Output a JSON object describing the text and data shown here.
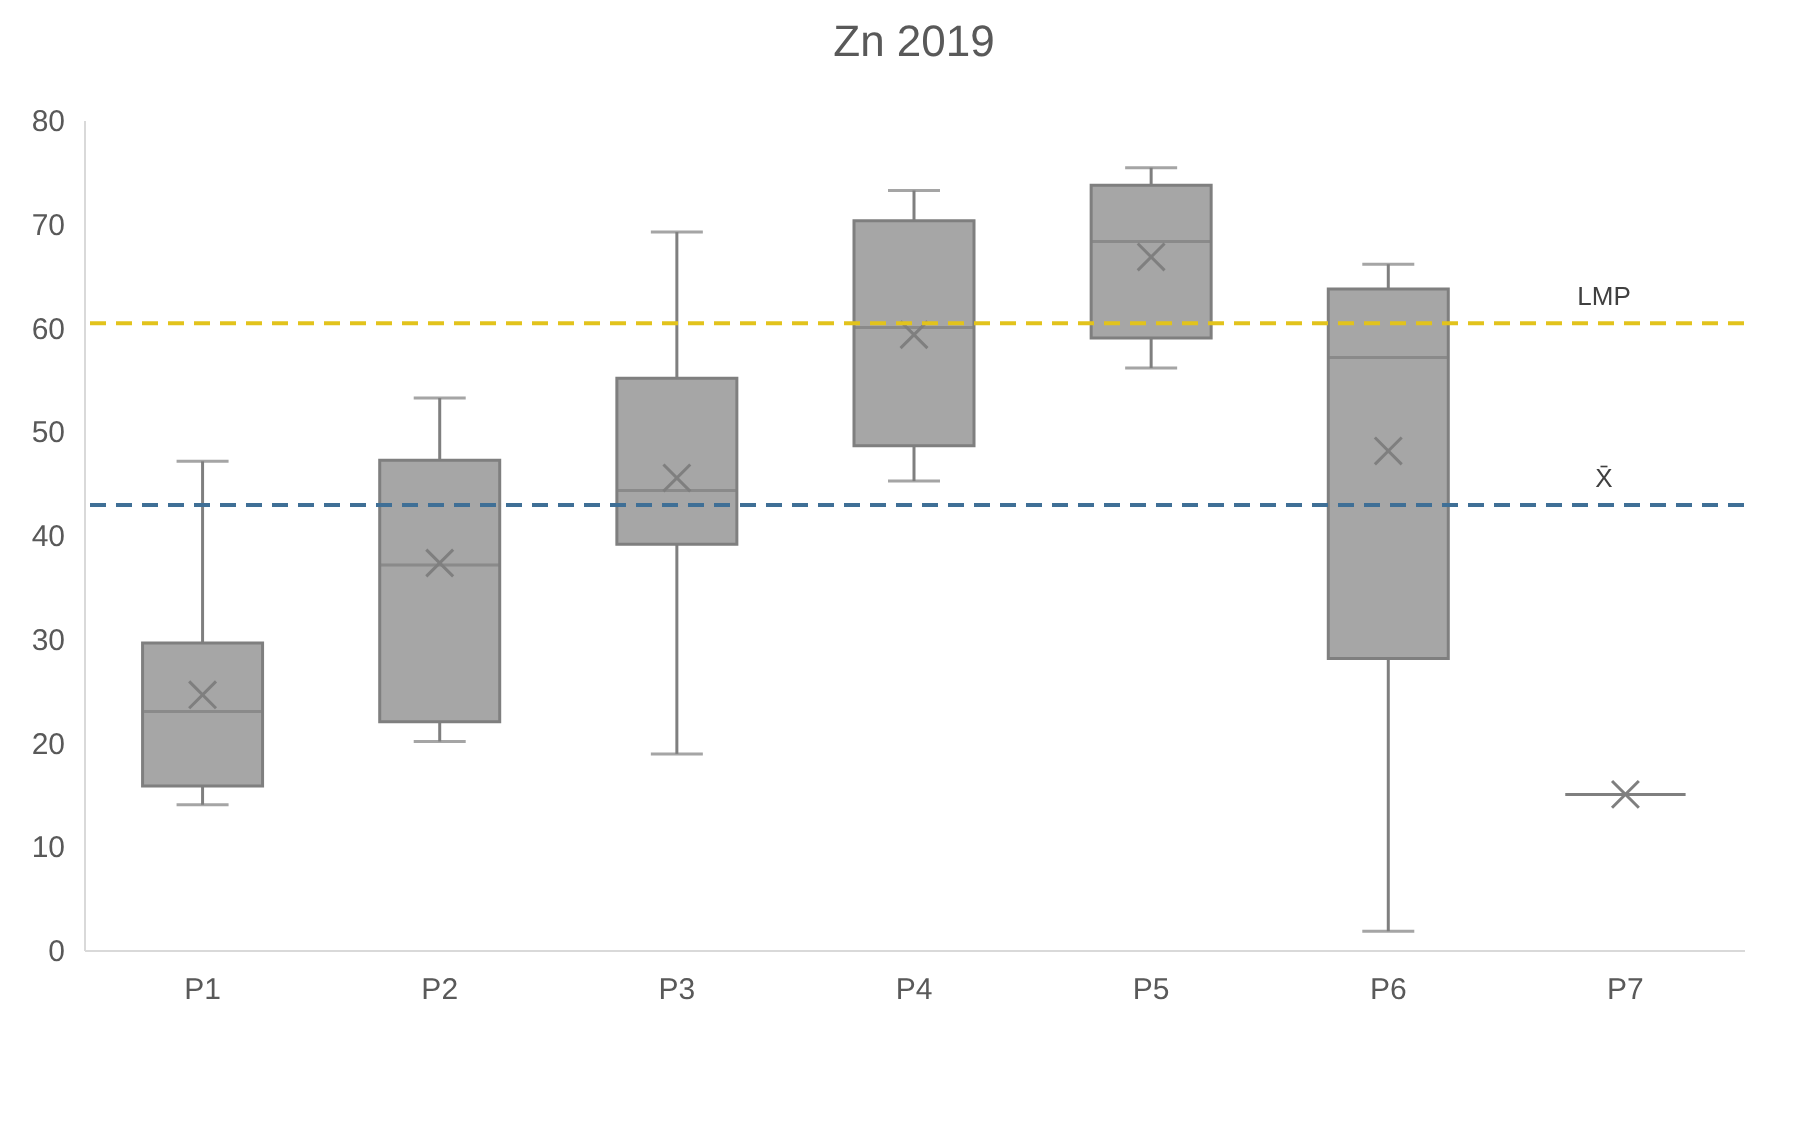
{
  "chart_data": {
    "type": "box",
    "title": "Zn 2019",
    "categories": [
      "P1",
      "P2",
      "P3",
      "P4",
      "P5",
      "P6",
      "P7"
    ],
    "series": [
      {
        "color": "#a6a6a6",
        "boxes": [
          {
            "low": 14,
            "q1": 15.8,
            "median": 23,
            "q3": 29.6,
            "high": 47.1,
            "mean": 24.6
          },
          {
            "low": 20.1,
            "q1": 22,
            "median": 37.1,
            "q3": 47.2,
            "high": 53.2,
            "mean": 37.3
          },
          {
            "low": 18.9,
            "q1": 39.1,
            "median": 44.3,
            "q3": 55.1,
            "high": 69.2,
            "mean": 45.5
          },
          {
            "low": 45.2,
            "q1": 48.6,
            "median": 60,
            "q3": 70.3,
            "high": 73.2,
            "mean": 59.3
          },
          {
            "low": 56.1,
            "q1": 59,
            "median": 68.3,
            "q3": 73.7,
            "high": 75.4,
            "mean": 66.8
          },
          {
            "low": 1.8,
            "q1": 28.1,
            "median": 57.1,
            "q3": 63.7,
            "high": 66.1,
            "mean": 48.1
          },
          {
            "low": 15,
            "q1": 15,
            "median": 15,
            "q3": 15,
            "high": 15,
            "mean": 15
          }
        ]
      }
    ],
    "ylim": [
      0,
      80
    ],
    "yticks": [
      0,
      10,
      20,
      30,
      40,
      50,
      60,
      70,
      80
    ],
    "grid": false,
    "ref_lines": [
      {
        "axis": "y",
        "value": 60.4,
        "label": "LMP",
        "color": "#e2c31c",
        "line_style": "dashed"
      },
      {
        "axis": "y",
        "value": 42.9,
        "label": "X̄",
        "color": "#3f6f96",
        "line_style": "dashed"
      }
    ]
  }
}
